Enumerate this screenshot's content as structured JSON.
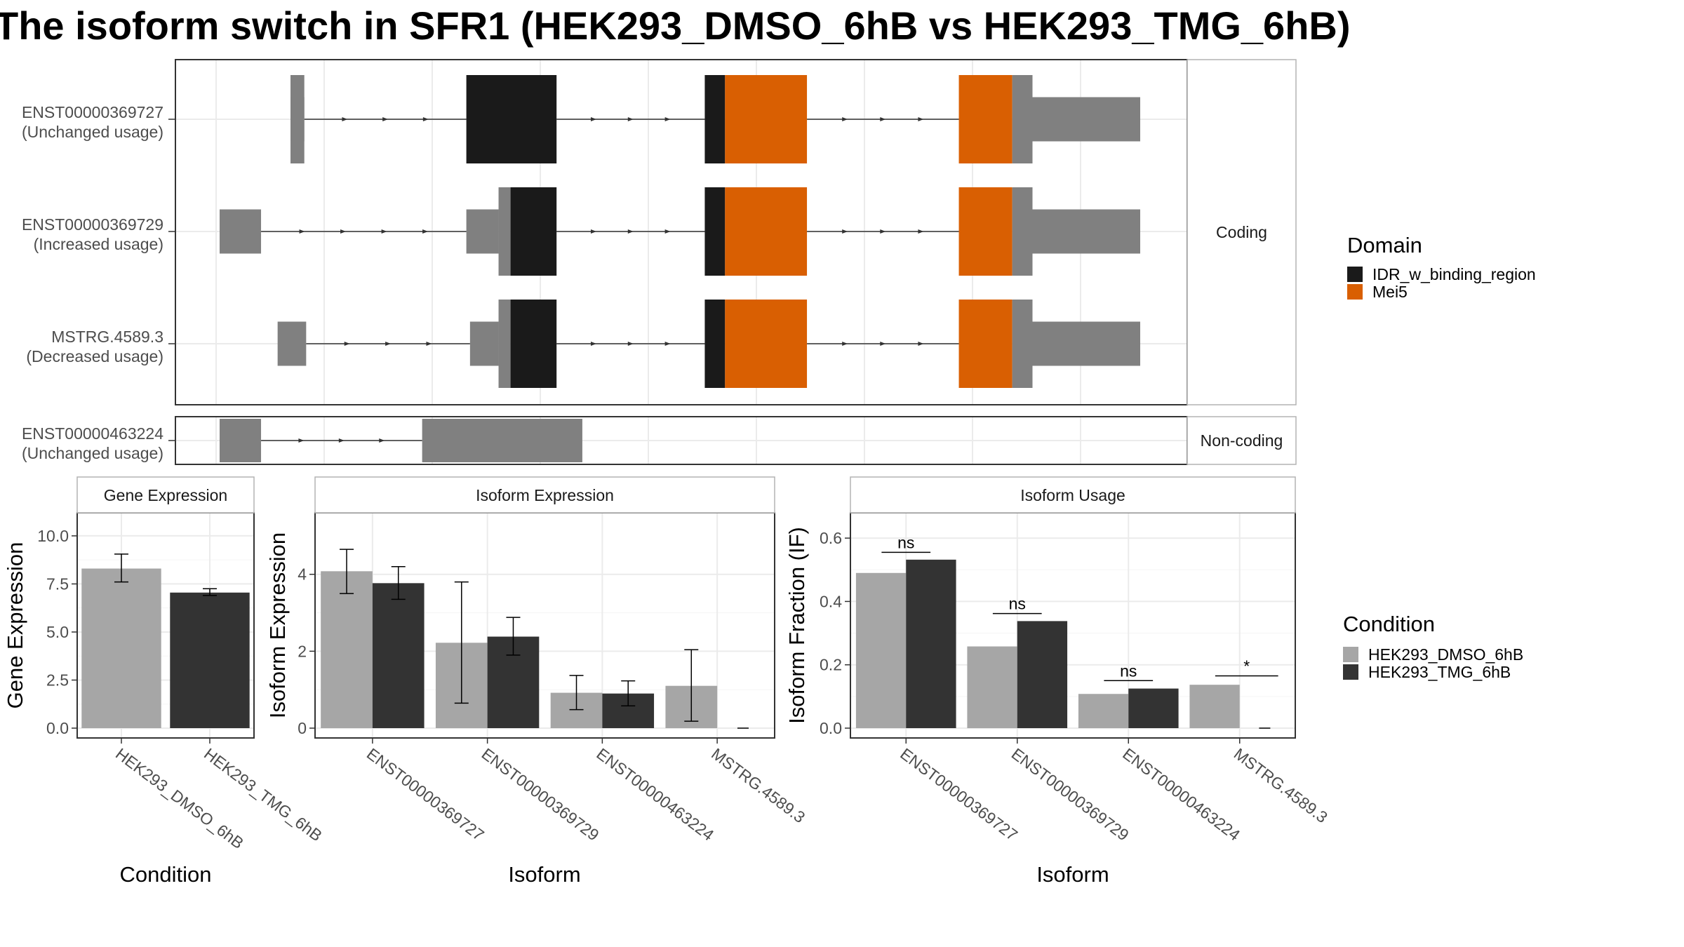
{
  "title": "The isoform switch in SFR1 (HEK293_DMSO_6hB vs HEK293_TMG_6hB)",
  "colors": {
    "utr": "#808080",
    "idr": "#1a1a1a",
    "mei5": "#d95f02",
    "dmso": "#a6a6a6",
    "tmg": "#333333",
    "grid": "#ebebeb",
    "panel_border": "#333333",
    "strip_bg": "#ffffff"
  },
  "structure": {
    "strips": {
      "coding": "Coding",
      "noncoding": "Non-coding"
    },
    "genomic_span": [
      0,
      100
    ],
    "transcripts": [
      {
        "id": "ENST00000369727",
        "usage": "(Unchanged usage)",
        "group": "coding",
        "blocks": [
          {
            "start": 7.7,
            "end": 9.2,
            "h": 1.0,
            "domain": "utr"
          },
          {
            "start": 7.7,
            "end": 9.2,
            "h": 0.5,
            "domain": "utr"
          },
          {
            "start": 26.8,
            "end": 36.6,
            "h": 1.0,
            "domain": "idr"
          },
          {
            "start": 52.7,
            "end": 54.9,
            "h": 1.0,
            "domain": "idr"
          },
          {
            "start": 54.9,
            "end": 63.8,
            "h": 1.0,
            "domain": "mei5"
          },
          {
            "start": 80.3,
            "end": 86.1,
            "h": 1.0,
            "domain": "mei5"
          },
          {
            "start": 86.1,
            "end": 88.3,
            "h": 1.0,
            "domain": "utr"
          },
          {
            "start": 88.3,
            "end": 100,
            "h": 0.5,
            "domain": "utr"
          }
        ]
      },
      {
        "id": "ENST00000369729",
        "usage": "(Increased usage)",
        "group": "coding",
        "blocks": [
          {
            "start": 0,
            "end": 4.5,
            "h": 0.5,
            "domain": "utr"
          },
          {
            "start": 26.8,
            "end": 30.3,
            "h": 0.5,
            "domain": "utr"
          },
          {
            "start": 30.3,
            "end": 31.6,
            "h": 1.0,
            "domain": "utr"
          },
          {
            "start": 31.6,
            "end": 36.6,
            "h": 1.0,
            "domain": "idr"
          },
          {
            "start": 52.7,
            "end": 54.9,
            "h": 1.0,
            "domain": "idr"
          },
          {
            "start": 54.9,
            "end": 63.8,
            "h": 1.0,
            "domain": "mei5"
          },
          {
            "start": 80.3,
            "end": 86.1,
            "h": 1.0,
            "domain": "mei5"
          },
          {
            "start": 86.1,
            "end": 88.3,
            "h": 1.0,
            "domain": "utr"
          },
          {
            "start": 88.3,
            "end": 100,
            "h": 0.5,
            "domain": "utr"
          }
        ]
      },
      {
        "id": "MSTRG.4589.3",
        "usage": "(Decreased usage)",
        "group": "coding",
        "blocks": [
          {
            "start": 6.3,
            "end": 9.4,
            "h": 0.5,
            "domain": "utr"
          },
          {
            "start": 27.2,
            "end": 30.3,
            "h": 0.5,
            "domain": "utr"
          },
          {
            "start": 30.3,
            "end": 31.6,
            "h": 1.0,
            "domain": "utr"
          },
          {
            "start": 31.6,
            "end": 36.6,
            "h": 1.0,
            "domain": "idr"
          },
          {
            "start": 52.7,
            "end": 54.9,
            "h": 1.0,
            "domain": "idr"
          },
          {
            "start": 54.9,
            "end": 63.8,
            "h": 1.0,
            "domain": "mei5"
          },
          {
            "start": 80.3,
            "end": 86.1,
            "h": 1.0,
            "domain": "mei5"
          },
          {
            "start": 86.1,
            "end": 88.3,
            "h": 1.0,
            "domain": "utr"
          },
          {
            "start": 88.3,
            "end": 100,
            "h": 0.5,
            "domain": "utr"
          }
        ]
      },
      {
        "id": "ENST00000463224",
        "usage": "(Unchanged usage)",
        "group": "noncoding",
        "blocks": [
          {
            "start": 0,
            "end": 4.5,
            "h": 1.0,
            "domain": "utr"
          },
          {
            "start": 22.0,
            "end": 39.4,
            "h": 1.0,
            "domain": "utr"
          }
        ]
      }
    ]
  },
  "domain_legend": {
    "title": "Domain",
    "items": [
      {
        "label": "IDR_w_binding_region",
        "color": "#1a1a1a"
      },
      {
        "label": "Mei5",
        "color": "#d95f02"
      }
    ]
  },
  "condition_legend": {
    "title": "Condition",
    "items": [
      {
        "label": "HEK293_DMSO_6hB",
        "color": "#a6a6a6"
      },
      {
        "label": "HEK293_TMG_6hB",
        "color": "#333333"
      }
    ]
  },
  "chart_data": [
    {
      "type": "bar",
      "title": "Gene Expression",
      "xlabel": "Condition",
      "ylabel": "Gene Expression",
      "ylim": [
        0,
        11.2
      ],
      "yticks": [
        0.0,
        2.5,
        5.0,
        7.5,
        10.0
      ],
      "ytick_labels": [
        "0.0",
        "2.5",
        "5.0",
        "7.5",
        "10.0"
      ],
      "categories": [
        "HEK293_DMSO_6hB",
        "HEK293_TMG_6hB"
      ],
      "series": [
        {
          "values": [
            8.3,
            7.05
          ],
          "err_low": [
            7.6,
            6.9
          ],
          "err_high": [
            9.05,
            7.25
          ]
        }
      ]
    },
    {
      "type": "bar",
      "title": "Isoform Expression",
      "xlabel": "Isoform",
      "ylabel": "Isoform Expression",
      "ylim": [
        0,
        5.6
      ],
      "yticks": [
        0,
        2,
        4
      ],
      "ytick_labels": [
        "0",
        "2",
        "4"
      ],
      "categories": [
        "ENST00000369727",
        "ENST00000369729",
        "ENST00000463224",
        "MSTRG.4589.3"
      ],
      "series": [
        {
          "name": "HEK293_DMSO_6hB",
          "values": [
            4.08,
            2.22,
            0.92,
            1.1
          ],
          "err_low": [
            3.5,
            0.65,
            0.48,
            0.18
          ],
          "err_high": [
            4.65,
            3.8,
            1.37,
            2.04
          ]
        },
        {
          "name": "HEK293_TMG_6hB",
          "values": [
            3.77,
            2.38,
            0.9,
            0.0
          ],
          "err_low": [
            3.35,
            1.9,
            0.58,
            0.0
          ],
          "err_high": [
            4.2,
            2.88,
            1.23,
            0.0
          ]
        }
      ]
    },
    {
      "type": "bar",
      "title": "Isoform Usage",
      "xlabel": "Isoform",
      "ylabel": "Isoform Fraction (IF)",
      "ylim": [
        0,
        0.68
      ],
      "yticks": [
        0.0,
        0.2,
        0.4,
        0.6
      ],
      "ytick_labels": [
        "0.0",
        "0.2",
        "0.4",
        "0.6"
      ],
      "categories": [
        "ENST00000369727",
        "ENST00000369729",
        "ENST00000463224",
        "MSTRG.4589.3"
      ],
      "series": [
        {
          "name": "HEK293_DMSO_6hB",
          "values": [
            0.49,
            0.258,
            0.108,
            0.137
          ]
        },
        {
          "name": "HEK293_TMG_6hB",
          "values": [
            0.532,
            0.338,
            0.125,
            0.0
          ]
        }
      ],
      "significance": [
        {
          "label": "ns",
          "y": 0.555
        },
        {
          "label": "ns",
          "y": 0.362
        },
        {
          "label": "ns",
          "y": 0.15
        },
        {
          "label": "*",
          "y": 0.165
        }
      ]
    }
  ]
}
